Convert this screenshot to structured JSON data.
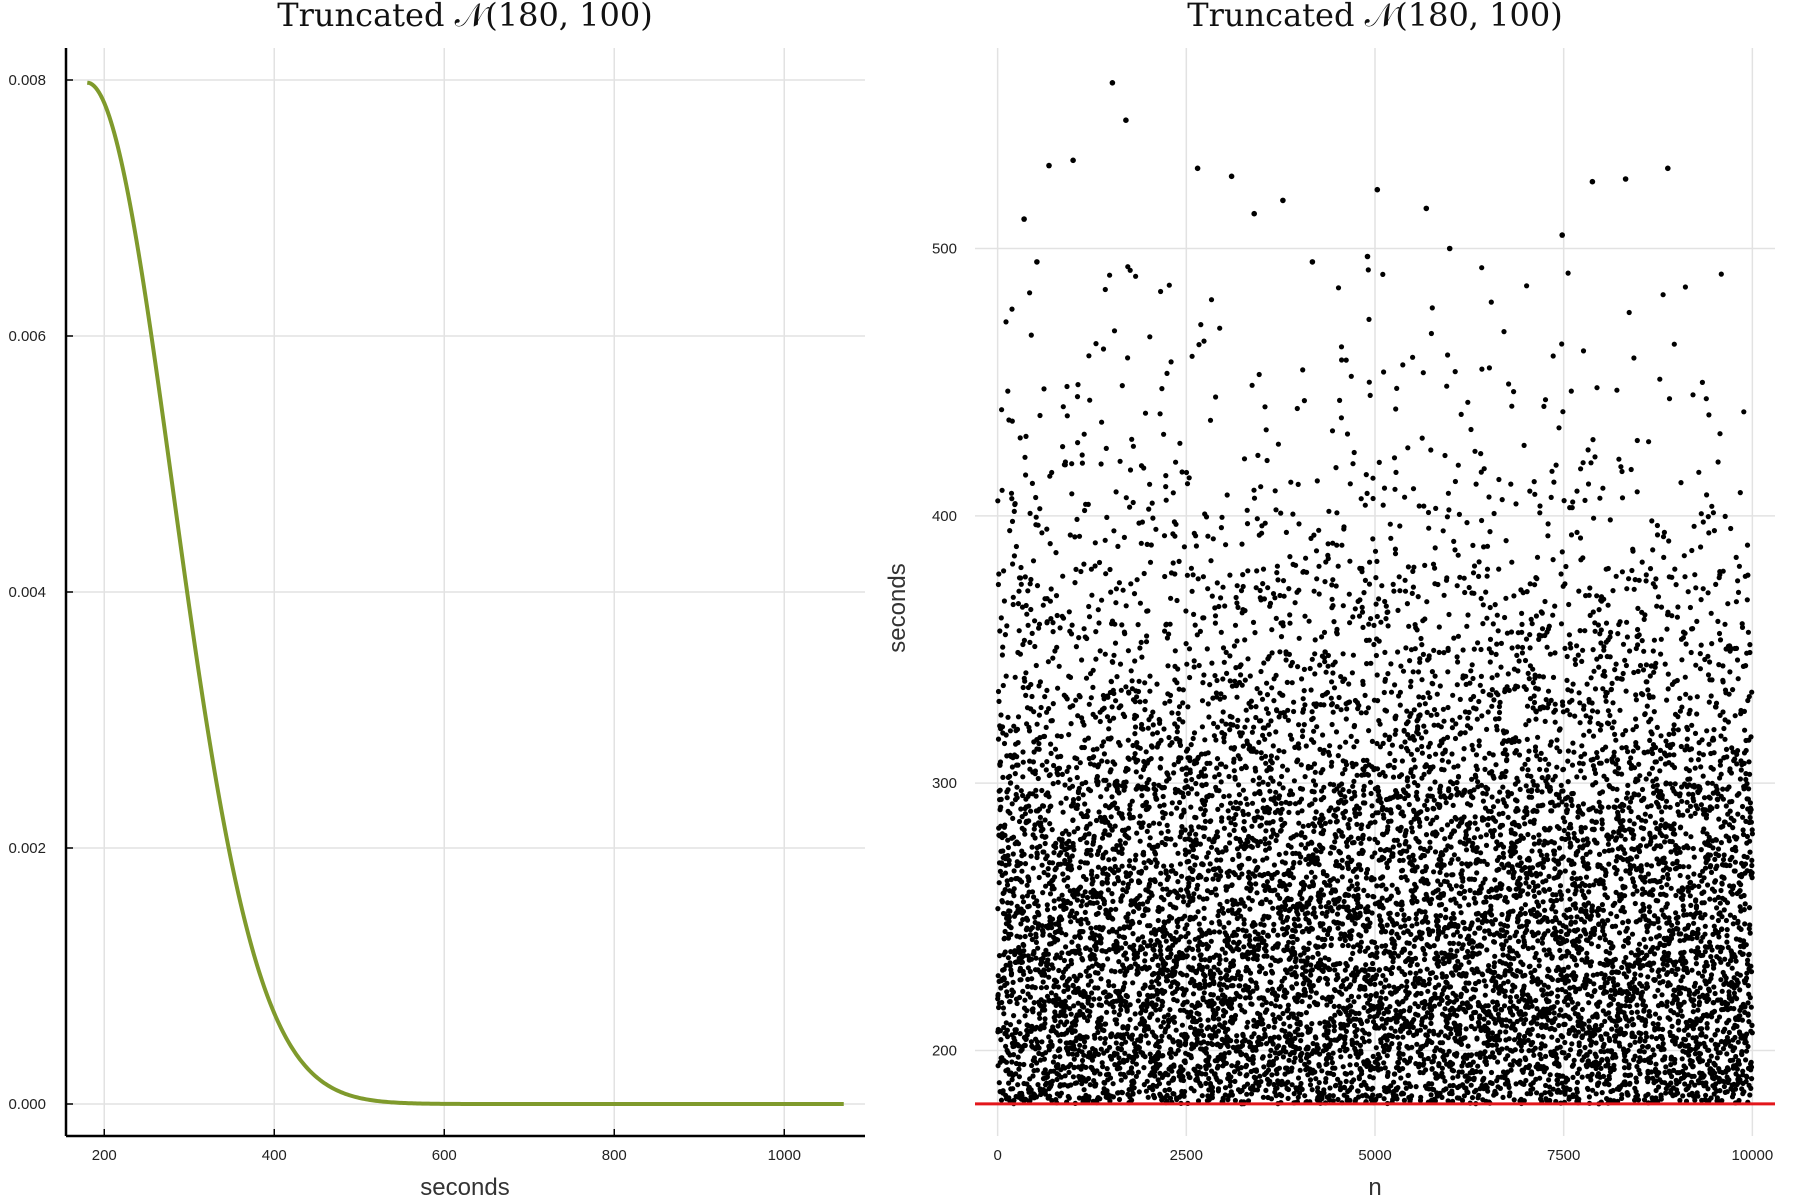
{
  "chart_data": [
    {
      "type": "line",
      "title": "Truncated 𝒩(180, 100)",
      "xlabel": "seconds",
      "ylabel": "",
      "xlim": [
        155,
        1095
      ],
      "ylim": [
        -0.00025,
        0.00825
      ],
      "xticks": [
        200,
        400,
        600,
        800,
        1000
      ],
      "xtick_labels": [
        "200",
        "400",
        "600",
        "800",
        "1000"
      ],
      "yticks": [
        0,
        0.002,
        0.004,
        0.006,
        0.008
      ],
      "ytick_labels": [
        "0.000",
        "0.002",
        "0.004",
        "0.006",
        "0.008"
      ],
      "grid": true,
      "legend": "none",
      "series": [
        {
          "color": "#7f9a2c",
          "distribution": {
            "family": "truncated-normal",
            "mean": 180,
            "sd": 100,
            "lower": 180
          },
          "x_range": [
            180,
            1070
          ],
          "x": [
            180,
            200,
            220,
            240,
            260,
            280,
            300,
            320,
            340,
            360,
            380,
            400,
            420,
            440,
            460,
            480,
            500,
            520,
            540,
            560,
            580,
            600,
            700,
            800,
            900,
            1000,
            1070
          ],
          "y": [
            0.00798,
            0.00782,
            0.00736,
            0.00666,
            0.00579,
            0.00484,
            0.00388,
            0.00299,
            0.00222,
            0.00158,
            0.00108,
            0.00071,
            0.00045,
            0.00027,
            0.00016,
            9e-05,
            5e-05,
            2e-05,
            1e-05,
            0.0,
            0.0,
            0.0,
            0.0,
            0.0,
            0.0,
            0.0,
            0.0
          ]
        }
      ]
    },
    {
      "type": "scatter",
      "title": "Truncated 𝒩(180, 100)",
      "xlabel": "n",
      "ylabel": "seconds",
      "xlim": [
        -300,
        10300
      ],
      "ylim": [
        168,
        575
      ],
      "xticks": [
        0,
        2500,
        5000,
        7500,
        10000
      ],
      "xtick_labels": [
        "0",
        "2500",
        "5000",
        "7500",
        "10000"
      ],
      "yticks": [
        200,
        300,
        400,
        500
      ],
      "ytick_labels": [
        "200",
        "300",
        "400",
        "500"
      ],
      "grid": true,
      "legend": "none",
      "series": [
        {
          "color": "#000000",
          "count": 10000,
          "x_range": [
            1,
            10000
          ],
          "distribution": {
            "family": "truncated-normal",
            "mean": 180,
            "sd": 100,
            "lower": 180
          },
          "notable_points": [
            {
              "x": 1520,
              "y": 562
            },
            {
              "x": 1700,
              "y": 548
            },
            {
              "x": 1000,
              "y": 533
            },
            {
              "x": 680,
              "y": 531
            },
            {
              "x": 2650,
              "y": 530
            },
            {
              "x": 8880,
              "y": 530
            },
            {
              "x": 3100,
              "y": 527
            },
            {
              "x": 8320,
              "y": 526
            },
            {
              "x": 7880,
              "y": 525
            },
            {
              "x": 5030,
              "y": 522
            },
            {
              "x": 3780,
              "y": 518
            },
            {
              "x": 5680,
              "y": 515
            },
            {
              "x": 350,
              "y": 511
            },
            {
              "x": 3400,
              "y": 513
            },
            {
              "x": 7480,
              "y": 505
            },
            {
              "x": 5990,
              "y": 500
            },
            {
              "x": 4900,
              "y": 497
            },
            {
              "x": 520,
              "y": 495
            },
            {
              "x": 4170,
              "y": 495
            }
          ]
        },
        {
          "type": "hline",
          "color": "#e3161b",
          "y": 180
        }
      ]
    }
  ]
}
